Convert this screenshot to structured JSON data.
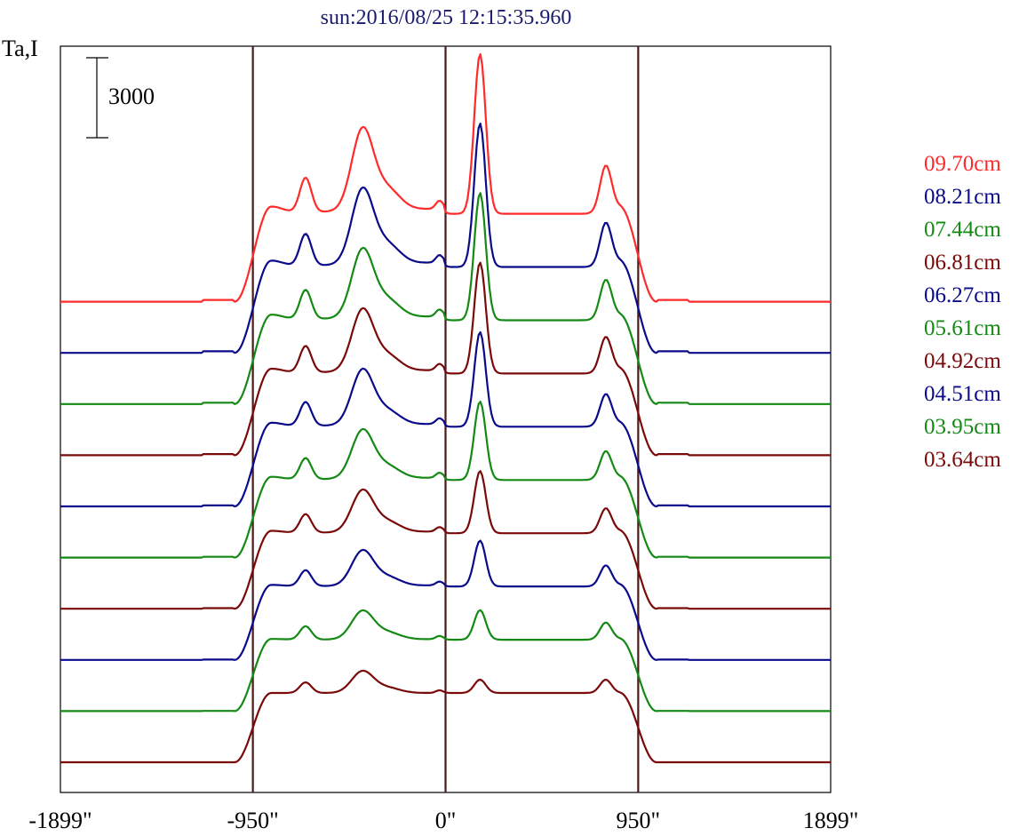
{
  "chart_data": {
    "type": "line",
    "title": "sun:2016/08/25 12:15:35.960",
    "ylabel": "Ta,I",
    "xlabel": "",
    "xlim": [
      -1899,
      1899
    ],
    "x_ticks": [
      -1899,
      -950,
      0,
      950,
      1899
    ],
    "x_tick_labels": [
      "-1899\"",
      "-950\"",
      "0\"",
      "950\"",
      "1899\""
    ],
    "vertical_lines": [
      -950,
      0,
      950
    ],
    "scale_bar": {
      "label": "3000",
      "value": 3000
    },
    "grid": false,
    "legend_position": "right",
    "colors": {
      "red": "#ff2a2a",
      "blue": "#0a0a8a",
      "green": "#148a14",
      "brown": "#7a0a0a",
      "axis": "#000000",
      "vline": "#4a1a1a"
    },
    "series": [
      {
        "name": "09.70cm",
        "color": "#ff2a2a",
        "offset": 9
      },
      {
        "name": "08.21cm",
        "color": "#0a0a8a",
        "offset": 8
      },
      {
        "name": "07.44cm",
        "color": "#148a14",
        "offset": 7
      },
      {
        "name": "06.81cm",
        "color": "#7a0a0a",
        "offset": 6
      },
      {
        "name": "06.27cm",
        "color": "#0a0a8a",
        "offset": 5
      },
      {
        "name": "05.61cm",
        "color": "#148a14",
        "offset": 4
      },
      {
        "name": "04.92cm",
        "color": "#7a0a0a",
        "offset": 3
      },
      {
        "name": "04.51cm",
        "color": "#0a0a8a",
        "offset": 2
      },
      {
        "name": "03.95cm",
        "color": "#148a14",
        "offset": 1
      },
      {
        "name": "03.64cm",
        "color": "#7a0a0a",
        "offset": 0
      }
    ]
  }
}
